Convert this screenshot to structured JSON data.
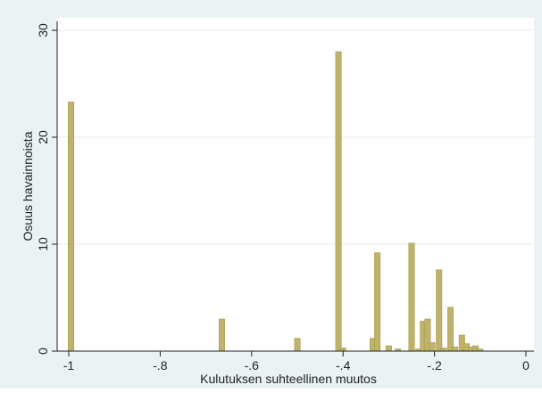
{
  "colors": {
    "outer_background": "#eaf2f3",
    "plot_background": "#ffffff",
    "bar_fill": "#bfb26a",
    "bar_stroke": "#a89a50",
    "gridline": "#e3ece9",
    "axis": "#222222"
  },
  "chart_data": {
    "type": "bar",
    "title": "",
    "xlabel": "Kulutuksen suhteellinen muutos",
    "ylabel": "Osuus havainnoista",
    "xlim": [
      -1.0,
      0.0
    ],
    "ylim": [
      0,
      30
    ],
    "x_ticks": [
      -1,
      -0.8,
      -0.6,
      -0.4,
      -0.2,
      0
    ],
    "x_tick_labels": [
      "-1",
      "-.8",
      "-.6",
      "-.4",
      "-.2",
      "0"
    ],
    "y_ticks": [
      0,
      10,
      20,
      30
    ],
    "y_tick_labels": [
      "0",
      "10",
      "20",
      "30"
    ],
    "grid": "horizontal",
    "legend": "none",
    "bar_width": 0.0125,
    "bars": [
      {
        "x": -0.995,
        "y": 23.3
      },
      {
        "x": -0.665,
        "y": 3.0
      },
      {
        "x": -0.5,
        "y": 1.2
      },
      {
        "x": -0.41,
        "y": 28.0
      },
      {
        "x": -0.4,
        "y": 0.3
      },
      {
        "x": -0.335,
        "y": 1.2
      },
      {
        "x": -0.325,
        "y": 9.2
      },
      {
        "x": -0.3,
        "y": 0.5
      },
      {
        "x": -0.28,
        "y": 0.2
      },
      {
        "x": -0.25,
        "y": 10.1
      },
      {
        "x": -0.235,
        "y": 0.2
      },
      {
        "x": -0.225,
        "y": 2.8
      },
      {
        "x": -0.215,
        "y": 3.0
      },
      {
        "x": -0.205,
        "y": 0.8
      },
      {
        "x": -0.19,
        "y": 7.6
      },
      {
        "x": -0.18,
        "y": 0.3
      },
      {
        "x": -0.165,
        "y": 4.1
      },
      {
        "x": -0.155,
        "y": 0.4
      },
      {
        "x": -0.14,
        "y": 1.5
      },
      {
        "x": -0.13,
        "y": 0.7
      },
      {
        "x": -0.12,
        "y": 0.4
      },
      {
        "x": -0.11,
        "y": 0.5
      },
      {
        "x": -0.1,
        "y": 0.2
      }
    ]
  }
}
